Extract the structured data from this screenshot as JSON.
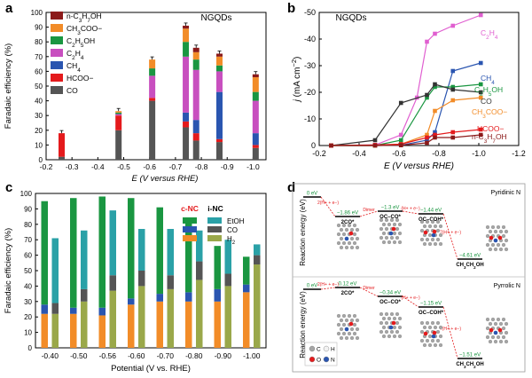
{
  "chart_data": [
    {
      "panel": "a",
      "type": "bar",
      "stacked": true,
      "title": "NGQDs",
      "xlabel": "E (V versus RHE)",
      "ylabel": "Faradaic efficiency (%)",
      "xlim": [
        -0.2,
        -1.05
      ],
      "ylim": [
        0,
        100
      ],
      "xticks": [
        "-0.2",
        "-0.3",
        "-0.4",
        "-0.5",
        "-0.6",
        "-0.7",
        "-0.8",
        "-0.9",
        "-1.0"
      ],
      "yticks": [
        "0",
        "10",
        "20",
        "30",
        "40",
        "50",
        "60",
        "70",
        "80",
        "90",
        "100"
      ],
      "legend": [
        "n-C3H7OH",
        "CH3COO−",
        "C2H5OH",
        "C2H4",
        "CH4",
        "HCOO−",
        "CO"
      ],
      "colors": {
        "n-C3H7OH": "#8b1a1a",
        "CH3COO−": "#f28c28",
        "C2H5OH": "#1a9641",
        "C2H4": "#c84fbf",
        "CH4": "#2a55b0",
        "HCOO−": "#e41a1c",
        "CO": "#555555"
      },
      "bars": [
        {
          "x": -0.26,
          "values": {
            "CO": 2,
            "HCOO−": 16
          }
        },
        {
          "x": -0.48,
          "values": {
            "CO": 20,
            "HCOO−": 10,
            "C2H4": 1,
            "C2H5OH": 1,
            "CH3COO−": 1
          }
        },
        {
          "x": -0.61,
          "values": {
            "CO": 40,
            "HCOO−": 2,
            "C2H4": 15,
            "C2H5OH": 5,
            "CH3COO−": 6
          }
        },
        {
          "x": -0.74,
          "values": {
            "CO": 22,
            "HCOO−": 4,
            "CH4": 6,
            "C2H4": 38,
            "C2H5OH": 10,
            "CH3COO−": 9,
            "n-C3H7OH": 2
          }
        },
        {
          "x": -0.78,
          "values": {
            "CO": 13,
            "HCOO−": 5,
            "CH4": 9,
            "C2H4": 34,
            "C2H5OH": 7,
            "CH3COO−": 5,
            "n-C3H7OH": 3
          }
        },
        {
          "x": -0.87,
          "values": {
            "CO": 12,
            "HCOO−": 2,
            "CH4": 32,
            "C2H4": 14,
            "C2H5OH": 4,
            "CH3COO−": 6,
            "n-C3H7OH": 2
          }
        },
        {
          "x": -1.01,
          "values": {
            "CO": 8,
            "HCOO−": 2,
            "CH4": 8,
            "C2H4": 22,
            "C2H5OH": 6,
            "CH3COO−": 10,
            "n-C3H7OH": 2
          }
        }
      ]
    },
    {
      "panel": "b",
      "type": "line",
      "title": "NGQDs",
      "xlabel": "E (V versus RHE)",
      "ylabel": "j (mA cm−2)",
      "xlim": [
        -0.2,
        -1.2
      ],
      "ylim": [
        0,
        -50
      ],
      "xticks": [
        "-0.2",
        "-0.4",
        "-0.6",
        "-0.8",
        "-1.0",
        "-1.2"
      ],
      "yticks": [
        "0",
        "-10",
        "-20",
        "-30",
        "-40",
        "-50"
      ],
      "series": [
        {
          "name": "C2H4",
          "color": "#e05fd0",
          "x": [
            -0.26,
            -0.48,
            -0.61,
            -0.69,
            -0.74,
            -0.78,
            -0.87,
            -1.01
          ],
          "y": [
            0,
            -0.2,
            -4,
            -18,
            -39,
            -42,
            -45,
            -49
          ]
        },
        {
          "name": "CH4",
          "color": "#2a55b0",
          "x": [
            -0.26,
            -0.48,
            -0.61,
            -0.74,
            -0.78,
            -0.87,
            -1.01
          ],
          "y": [
            0,
            0,
            -0.1,
            -2,
            -5,
            -28,
            -31
          ]
        },
        {
          "name": "C2H5OH",
          "color": "#1a9641",
          "x": [
            -0.26,
            -0.48,
            -0.61,
            -0.74,
            -0.78,
            -0.87,
            -1.01
          ],
          "y": [
            0,
            0,
            -2,
            -18,
            -22,
            -22,
            -23
          ]
        },
        {
          "name": "CO",
          "color": "#333333",
          "x": [
            -0.26,
            -0.48,
            -0.61,
            -0.74,
            -0.78,
            -0.87,
            -1.01
          ],
          "y": [
            0,
            -2,
            -16,
            -19,
            -23,
            -21,
            -20
          ]
        },
        {
          "name": "CH3COO−",
          "color": "#f28c28",
          "x": [
            -0.26,
            -0.48,
            -0.61,
            -0.74,
            -0.78,
            -0.87,
            -1.01
          ],
          "y": [
            0,
            0,
            -0.5,
            -4,
            -13,
            -17,
            -18
          ]
        },
        {
          "name": "HCOO−",
          "color": "#e41a1c",
          "x": [
            -0.26,
            -0.48,
            -0.61,
            -0.74,
            -0.78,
            -0.87,
            -1.01
          ],
          "y": [
            0,
            -0.2,
            -0.5,
            -3,
            -4,
            -5,
            -6
          ]
        },
        {
          "name": "n-C3H7OH",
          "color": "#8b1a1a",
          "x": [
            -0.26,
            -0.48,
            -0.61,
            -0.74,
            -0.78,
            -0.87,
            -1.01
          ],
          "y": [
            0,
            0,
            -0.1,
            -1,
            -3,
            -3,
            -4
          ]
        }
      ]
    },
    {
      "panel": "c",
      "type": "bar",
      "stacked": true,
      "grouped": true,
      "xlabel": "Potential (V vs. RHE)",
      "ylabel": "Faradaic efficiency (%)",
      "ylim": [
        0,
        100
      ],
      "yticks": [
        "0",
        "10",
        "20",
        "30",
        "40",
        "50",
        "60",
        "70",
        "80",
        "90",
        "100"
      ],
      "categories": [
        "-0.40",
        "-0.50",
        "-0.56",
        "-0.60",
        "-0.70",
        "-0.80",
        "-0.90",
        "-1.00"
      ],
      "legend_groups": [
        "c-NC",
        "i-NC"
      ],
      "legend_items": [
        "EtOH",
        "CO",
        "H2"
      ],
      "colors": {
        "c-NC": {
          "EtOH": "#1a9641",
          "CO": "#2a55b0",
          "H2": "#f28c28"
        },
        "i-NC": {
          "EtOH": "#2aa1a7",
          "CO": "#555555",
          "H2": "#9aa84a"
        }
      },
      "series": [
        {
          "group": "c-NC",
          "H2": [
            22,
            22,
            21,
            28,
            30,
            30,
            30,
            36
          ],
          "CO": [
            6,
            4,
            5,
            4,
            5,
            6,
            8,
            5
          ],
          "EtOH": [
            67,
            71,
            72,
            65,
            56,
            45,
            28,
            18
          ]
        },
        {
          "group": "i-NC",
          "H2": [
            22,
            30,
            37,
            40,
            38,
            44,
            40,
            54
          ],
          "CO": [
            7,
            8,
            10,
            10,
            9,
            12,
            8,
            6
          ],
          "EtOH": [
            42,
            38,
            42,
            27,
            30,
            20,
            22,
            7
          ]
        }
      ]
    },
    {
      "panel": "d",
      "type": "diagram",
      "ylabel": "Reaction energy (eV)",
      "legend_atoms": [
        "C",
        "H",
        "O",
        "N"
      ],
      "pathways": [
        {
          "name": "Pyridinic N",
          "states": [
            {
              "label": "",
              "energy": "0 eV"
            },
            {
              "label": "2CO*",
              "energy": "−1.86 eV"
            },
            {
              "label": "OC–CO*",
              "energy": "−1.3 eV"
            },
            {
              "label": "OC–COH*",
              "energy": "−1.44 eV"
            },
            {
              "label": "CH3CH2OH",
              "energy": "−4.61 eV"
            }
          ],
          "steps": [
            "2(H+ + e−)",
            "Dimer",
            "(H+ + e−)",
            "7(H+ + e−)"
          ]
        },
        {
          "name": "Pyrrolic N",
          "states": [
            {
              "label": "",
              "energy": "0 eV"
            },
            {
              "label": "2CO*",
              "energy": "0.12 eV"
            },
            {
              "label": "OC–CO*",
              "energy": "−0.34 eV"
            },
            {
              "label": "OC–COH*",
              "energy": "−1.15 eV"
            },
            {
              "label": "CH3CH2OH",
              "energy": "−1.51 eV"
            }
          ],
          "steps": [
            "2(H+ + e−)",
            "Dimer",
            "(H+ + e−)",
            "7(H+ + e−)"
          ]
        }
      ]
    }
  ],
  "panel_labels": [
    "a",
    "b",
    "c",
    "d"
  ]
}
